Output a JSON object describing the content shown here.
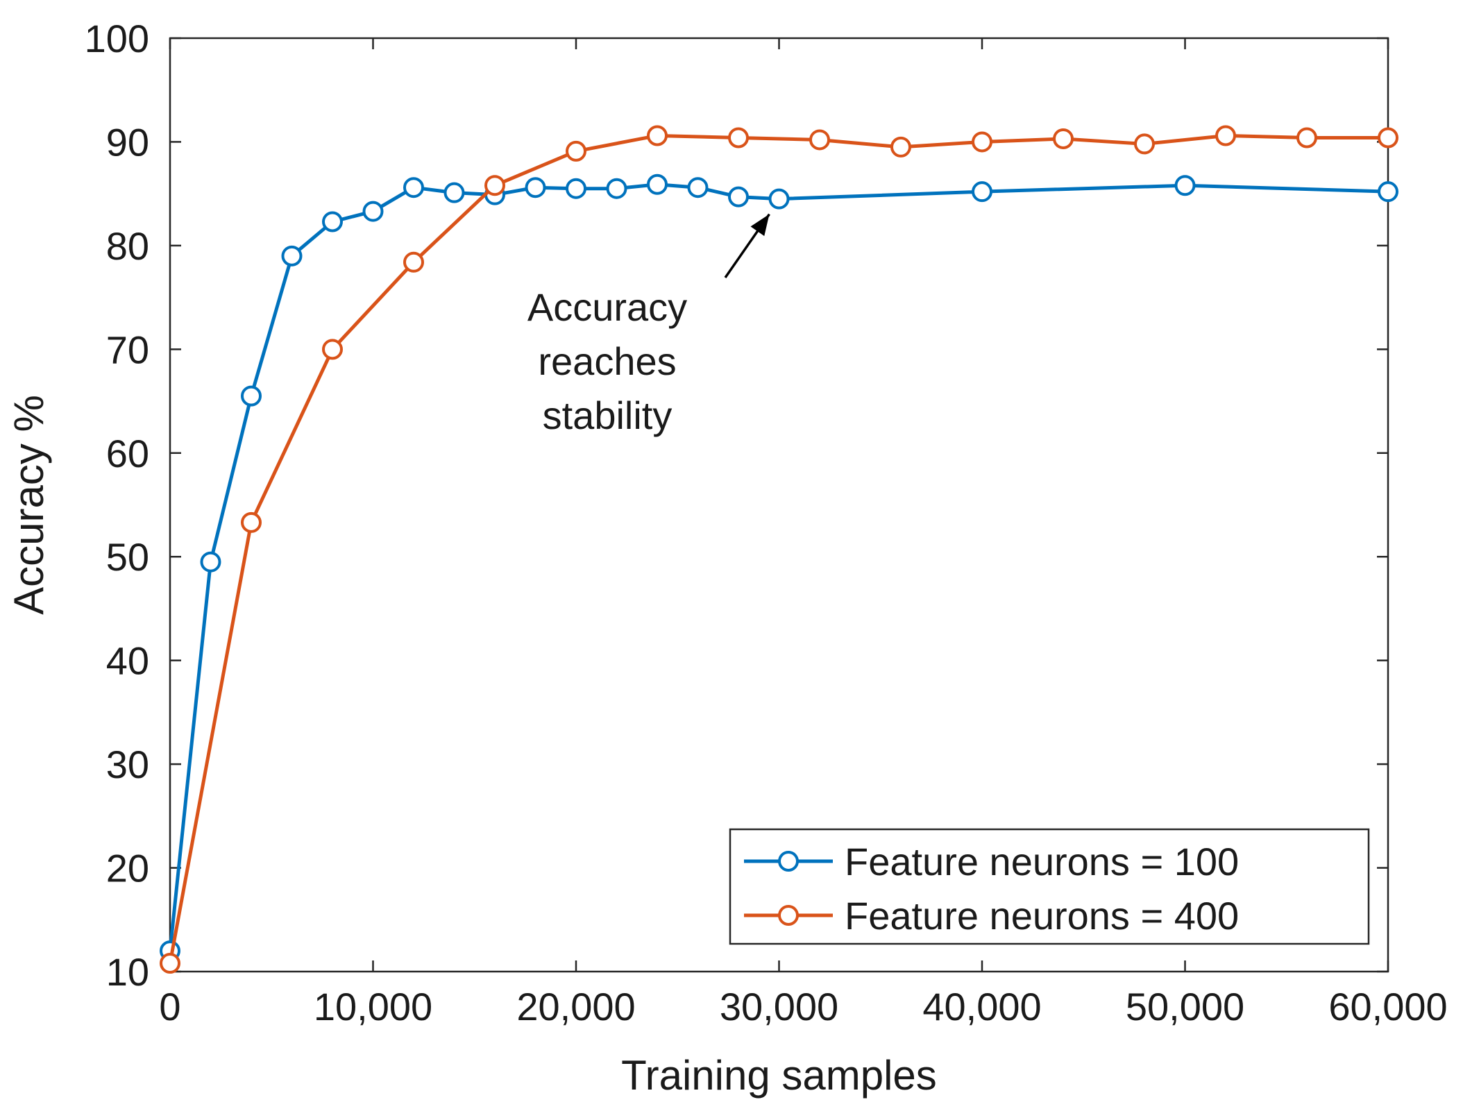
{
  "chart_data": {
    "type": "line",
    "title": "",
    "xlabel": "Training samples",
    "ylabel": "Accuracy %",
    "xlim": [
      0,
      60000
    ],
    "ylim": [
      10,
      100
    ],
    "x_ticks": [
      0,
      10000,
      20000,
      30000,
      40000,
      50000,
      60000
    ],
    "x_tick_labels": [
      "0",
      "10,000",
      "20,000",
      "30,000",
      "40,000",
      "50,000",
      "60,000"
    ],
    "y_ticks": [
      10,
      20,
      30,
      40,
      50,
      60,
      70,
      80,
      90,
      100
    ],
    "y_tick_labels": [
      "10",
      "20",
      "30",
      "40",
      "50",
      "60",
      "70",
      "80",
      "90",
      "100"
    ],
    "grid": false,
    "legend_position": "bottom-right",
    "series": [
      {
        "name": "Feature neurons = 100",
        "color": "#0072BD",
        "marker": "open-circle",
        "x": [
          0,
          2000,
          4000,
          6000,
          8000,
          10000,
          12000,
          14000,
          16000,
          18000,
          20000,
          22000,
          24000,
          26000,
          28000,
          30000,
          40000,
          50000,
          60000
        ],
        "y": [
          12,
          49.5,
          65.5,
          79,
          82.3,
          83.3,
          85.6,
          85.1,
          84.9,
          85.6,
          85.5,
          85.5,
          85.9,
          85.6,
          84.7,
          84.5,
          85.2,
          85.8,
          85.2
        ]
      },
      {
        "name": "Feature neurons = 400",
        "color": "#D95319",
        "marker": "open-circle",
        "x": [
          0,
          4000,
          8000,
          12000,
          16000,
          20000,
          24000,
          28000,
          32000,
          36000,
          40000,
          44000,
          48000,
          52000,
          56000,
          60000
        ],
        "y": [
          10.8,
          53.3,
          70,
          78.4,
          85.8,
          89.1,
          90.6,
          90.4,
          90.2,
          89.5,
          90,
          90.3,
          89.8,
          90.6,
          90.4,
          90.4
        ]
      }
    ],
    "annotations": [
      {
        "text_lines": [
          "Accuracy",
          "reaches",
          "stability"
        ],
        "arrow_to": {
          "x": 30000,
          "y": 84.5
        }
      }
    ]
  }
}
